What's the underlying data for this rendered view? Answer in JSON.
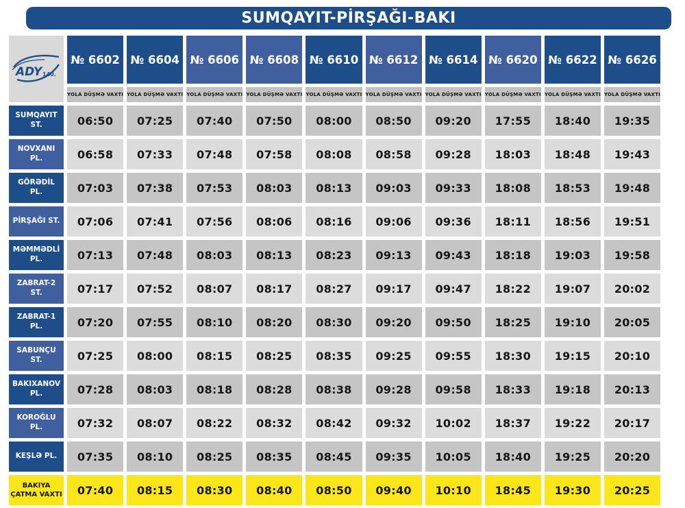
{
  "title": "SUMQAYIT-PİRŞAĞI-BAKI",
  "logo": {
    "brand": "ADY",
    "badge": "140."
  },
  "departure_label": "YOLA DÜŞMƏ VAXTI",
  "columns": [
    {
      "train": "№ 6602",
      "shade": "dark"
    },
    {
      "train": "№ 6604",
      "shade": "dark"
    },
    {
      "train": "№ 6606",
      "shade": "light"
    },
    {
      "train": "№ 6608",
      "shade": "light"
    },
    {
      "train": "№ 6610",
      "shade": "dark"
    },
    {
      "train": "№ 6612",
      "shade": "light"
    },
    {
      "train": "№ 6614",
      "shade": "dark"
    },
    {
      "train": "№ 6620",
      "shade": "light"
    },
    {
      "train": "№ 6622",
      "shade": "dark"
    },
    {
      "train": "№ 6626",
      "shade": "dark"
    }
  ],
  "rows": [
    {
      "station": "SUMQAYIT ST.",
      "times": [
        "06:50",
        "07:25",
        "07:40",
        "07:50",
        "08:00",
        "08:50",
        "09:20",
        "17:55",
        "18:40",
        "19:35"
      ]
    },
    {
      "station": "NOVXANI PL.",
      "times": [
        "06:58",
        "07:33",
        "07:48",
        "07:58",
        "08:08",
        "08:58",
        "09:28",
        "18:03",
        "18:48",
        "19:43"
      ]
    },
    {
      "station": "GÖRƏDİL PL.",
      "times": [
        "07:03",
        "07:38",
        "07:53",
        "08:03",
        "08:13",
        "09:03",
        "09:33",
        "18:08",
        "18:53",
        "19:48"
      ]
    },
    {
      "station": "PİRŞAĞI ST.",
      "times": [
        "07:06",
        "07:41",
        "07:56",
        "08:06",
        "08:16",
        "09:06",
        "09:36",
        "18:11",
        "18:56",
        "19:51"
      ]
    },
    {
      "station": "MƏMMƏDLİ PL.",
      "times": [
        "07:13",
        "07:48",
        "08:03",
        "08:13",
        "08:23",
        "09:13",
        "09:43",
        "18:18",
        "19:03",
        "19:58"
      ]
    },
    {
      "station": "ZABRAT-2 ST.",
      "times": [
        "07:17",
        "07:52",
        "08:07",
        "08:17",
        "08:27",
        "09:17",
        "09:47",
        "18:22",
        "19:07",
        "20:02"
      ]
    },
    {
      "station": "ZABRAT-1 PL.",
      "times": [
        "07:20",
        "07:55",
        "08:10",
        "08:20",
        "08:30",
        "09:20",
        "09:50",
        "18:25",
        "19:10",
        "20:05"
      ]
    },
    {
      "station": "SABUNÇU ST.",
      "times": [
        "07:25",
        "08:00",
        "08:15",
        "08:25",
        "08:35",
        "09:25",
        "09:55",
        "18:30",
        "19:15",
        "20:10"
      ]
    },
    {
      "station": "BAKIXANOV PL.",
      "times": [
        "07:28",
        "08:03",
        "08:18",
        "08:28",
        "08:38",
        "09:28",
        "09:58",
        "18:33",
        "19:18",
        "20:13"
      ]
    },
    {
      "station": "KOROĞLU PL.",
      "times": [
        "07:32",
        "08:07",
        "08:22",
        "08:32",
        "08:42",
        "09:32",
        "10:02",
        "18:37",
        "19:22",
        "20:17"
      ]
    },
    {
      "station": "KEŞLƏ PL.",
      "times": [
        "07:35",
        "08:10",
        "08:25",
        "08:35",
        "08:45",
        "09:35",
        "10:05",
        "18:40",
        "19:25",
        "20:20"
      ]
    }
  ],
  "arrival": {
    "station": "BAKIYA ÇATMA VAXTI",
    "times": [
      "07:40",
      "08:15",
      "08:30",
      "08:40",
      "08:50",
      "09:40",
      "10:10",
      "18:45",
      "19:30",
      "20:25"
    ]
  },
  "colors": {
    "dark_blue": "#1d4e89",
    "light_blue": "#3f5f9e",
    "banner_blue": "#1d4e89",
    "subheader_gray": "#c2c2c2",
    "row_gray_dark": "#c5c5c5",
    "row_gray_light": "#dcdcdc",
    "logo_gray": "#d9d9d9",
    "arrival_yellow": "#fbe719",
    "logo_blue": "#1d4e89"
  }
}
